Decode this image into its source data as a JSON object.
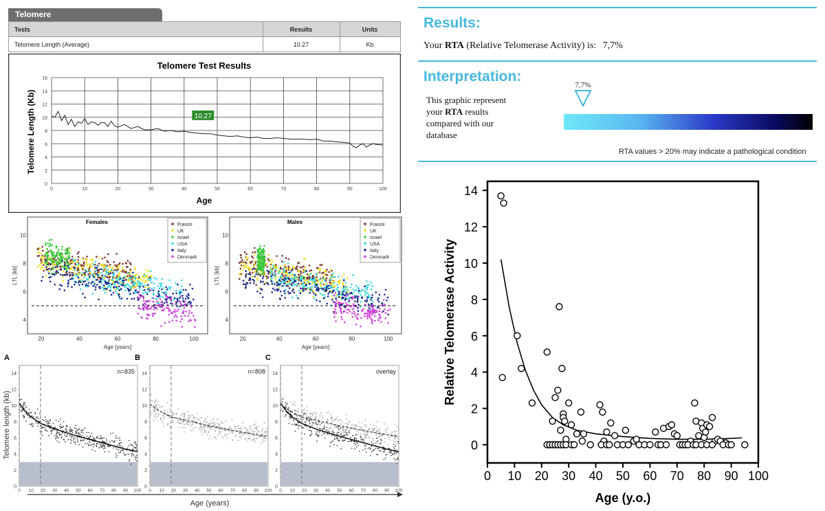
{
  "report": {
    "tab": "Telomere",
    "headers": [
      "Tests",
      "Results",
      "Units"
    ],
    "row": [
      "Telomere Length (Average)",
      "10.27",
      "Kb"
    ]
  },
  "rta": {
    "results_heading": "Results:",
    "result_prefix": "Your",
    "result_bold": "RTA",
    "result_rest": "(Relative Telomerase Activity) is:",
    "result_value": "7,7%",
    "interpretation_heading": "Interpretation:",
    "interp_line1": "This graphic represent",
    "interp_line2_pre": "your",
    "interp_line2_bold": "RTA",
    "interp_line2_post": "results",
    "interp_line3": "compared with our",
    "interp_line4": "database",
    "marker_label": "7,7%",
    "marker_fraction": 0.077,
    "note": "RTA values > 20% may indicate a pathological condition",
    "accent": "#45b8dc"
  },
  "chart_data": [
    {
      "type": "line",
      "title": "Telomere Test Results",
      "xlabel": "Age",
      "ylabel": "Telomere Length (Kb)",
      "xlim": [
        0,
        100
      ],
      "ylim": [
        0,
        16
      ],
      "xticks": [
        "0",
        "10",
        "20",
        "30",
        "40",
        "50",
        "60",
        "70",
        "80",
        "90",
        "100"
      ],
      "yticks": [
        "0",
        "2",
        "4",
        "6",
        "8",
        "10",
        "12",
        "14",
        "16"
      ],
      "annotation": "10.27",
      "annotation_color": "#2e8b2e",
      "x": [
        0,
        1,
        2,
        3,
        4,
        5,
        6,
        7,
        8,
        9,
        10,
        11,
        12,
        13,
        14,
        15,
        16,
        17,
        18,
        19,
        20,
        22,
        24,
        26,
        28,
        30,
        32,
        34,
        36,
        38,
        40,
        42,
        44,
        46,
        48,
        50,
        52,
        54,
        56,
        58,
        60,
        62,
        64,
        66,
        68,
        70,
        72,
        74,
        76,
        78,
        80,
        82,
        84,
        86,
        88,
        90,
        91,
        92,
        93,
        94,
        95,
        96,
        97,
        98,
        100
      ],
      "y": [
        10.2,
        10.0,
        10.9,
        9.5,
        10.3,
        8.9,
        9.7,
        8.6,
        9.3,
        9.1,
        9.8,
        8.9,
        9.3,
        9.2,
        8.8,
        9.2,
        9.2,
        8.6,
        9.4,
        8.7,
        8.5,
        8.9,
        8.3,
        8.6,
        8.1,
        8.1,
        8.3,
        7.9,
        8.0,
        7.8,
        7.9,
        7.7,
        7.6,
        7.5,
        7.5,
        7.3,
        7.2,
        7.1,
        7.2,
        7.0,
        6.9,
        7.0,
        6.8,
        6.8,
        6.9,
        6.8,
        6.7,
        6.7,
        6.7,
        6.6,
        6.7,
        6.4,
        6.4,
        6.3,
        6.2,
        6.1,
        5.6,
        5.4,
        5.8,
        6.0,
        5.5,
        5.8,
        6.0,
        5.9,
        5.8
      ]
    },
    {
      "type": "scatter",
      "title": "Females",
      "xlabel": "Age [years]",
      "ylabel": "LTL [kb]",
      "xticks": [
        "20",
        "40",
        "60",
        "80",
        "100"
      ],
      "yticks": [
        "4",
        "6",
        "8",
        "10"
      ],
      "xlim": [
        15,
        105
      ],
      "ylim": [
        3.3,
        11
      ],
      "reference_line": 5,
      "series": [
        {
          "name": "France",
          "color": "#7a2e2e",
          "x_range": [
            18,
            70
          ],
          "y_center": 7.6
        },
        {
          "name": "UK",
          "color": "#f0e020",
          "x_range": [
            18,
            78
          ],
          "y_center": 7.4
        },
        {
          "name": "Israel",
          "color": "#3cc83c",
          "x_range": [
            22,
            35
          ],
          "y_center": 7.9
        },
        {
          "name": "USA",
          "color": "#38d8e0",
          "x_range": [
            35,
            95
          ],
          "y_center": 6.9
        },
        {
          "name": "Italy",
          "color": "#1a2a88",
          "x_range": [
            20,
            100
          ],
          "y_center": 6.6
        },
        {
          "name": "Denmark",
          "color": "#d040d8",
          "x_range": [
            70,
            101
          ],
          "y_center": 5.6
        }
      ]
    },
    {
      "type": "scatter",
      "title": "Males",
      "xlabel": "Age [years]",
      "ylabel": "LTL [kb]",
      "xticks": [
        "20",
        "40",
        "60",
        "80",
        "100"
      ],
      "yticks": [
        "4",
        "6",
        "8",
        "10"
      ],
      "xlim": [
        15,
        105
      ],
      "ylim": [
        3.3,
        11
      ],
      "reference_line": 5,
      "series": [
        {
          "name": "France",
          "color": "#7a2e2e",
          "x_range": [
            18,
            70
          ],
          "y_center": 7.2
        },
        {
          "name": "UK",
          "color": "#f0e020",
          "x_range": [
            18,
            78
          ],
          "y_center": 7.0
        },
        {
          "name": "Israel",
          "color": "#3cc83c",
          "x_range": [
            28,
            32
          ],
          "y_center": 7.6
        },
        {
          "name": "USA",
          "color": "#38d8e0",
          "x_range": [
            35,
            92
          ],
          "y_center": 6.8
        },
        {
          "name": "Italy",
          "color": "#1a2a88",
          "x_range": [
            20,
            100
          ],
          "y_center": 6.3
        },
        {
          "name": "Denmark",
          "color": "#d040d8",
          "x_range": [
            70,
            101
          ],
          "y_center": 5.4
        }
      ]
    },
    {
      "type": "scatter",
      "panels": [
        {
          "letter": "A",
          "label": "n=835",
          "color": "#555555"
        },
        {
          "letter": "B",
          "label": "n=808",
          "color": "#aaaaaa"
        },
        {
          "letter": "C",
          "label": "overlay",
          "color": "#777777"
        }
      ],
      "xlabel": "Age (years)",
      "ylabel": "Telomere length (kb)",
      "xticks": [
        "0",
        "10",
        "20",
        "30",
        "40",
        "50",
        "60",
        "70",
        "80",
        "90",
        "100"
      ],
      "yticks": [
        "0",
        "2",
        "4",
        "6",
        "8",
        "10",
        "12",
        "14"
      ],
      "xlim": [
        0,
        100
      ],
      "ylim": [
        0,
        15
      ],
      "dashed_x": [
        0,
        18
      ],
      "shaded_band": [
        0,
        3
      ],
      "trend_a": [
        [
          0,
          10.3
        ],
        [
          5,
          9.3
        ],
        [
          10,
          8.6
        ],
        [
          18,
          7.8
        ],
        [
          30,
          7.1
        ],
        [
          50,
          6.2
        ],
        [
          70,
          5.4
        ],
        [
          90,
          4.6
        ],
        [
          100,
          4.3
        ]
      ],
      "trend_b": [
        [
          0,
          10.2
        ],
        [
          5,
          9.6
        ],
        [
          10,
          9.2
        ],
        [
          18,
          8.6
        ],
        [
          30,
          8.2
        ],
        [
          50,
          7.5
        ],
        [
          70,
          6.9
        ],
        [
          90,
          6.4
        ],
        [
          100,
          6.2
        ]
      ]
    },
    {
      "type": "scatter",
      "xlabel": "Age (y.o.)",
      "ylabel": "Relative Telomerase Activity",
      "xticks": [
        "0",
        "10",
        "20",
        "30",
        "40",
        "50",
        "60",
        "70",
        "80",
        "90",
        "100"
      ],
      "yticks": [
        "0",
        "2",
        "4",
        "6",
        "8",
        "10",
        "12",
        "14"
      ],
      "xlim": [
        0,
        100
      ],
      "ylim": [
        -1,
        14.5
      ],
      "points": [
        [
          5,
          13.7
        ],
        [
          6,
          13.3
        ],
        [
          5.5,
          3.7
        ],
        [
          11,
          6.0
        ],
        [
          12.5,
          4.2
        ],
        [
          16.5,
          2.3
        ],
        [
          22,
          5.1
        ],
        [
          24,
          1.3
        ],
        [
          25,
          2.6
        ],
        [
          26,
          3.0
        ],
        [
          26.5,
          7.6
        ],
        [
          27.5,
          4.2
        ],
        [
          28,
          1.7
        ],
        [
          28,
          1.5
        ],
        [
          28.5,
          1.3
        ],
        [
          27,
          0.8
        ],
        [
          29,
          0.3
        ],
        [
          30,
          2.3
        ],
        [
          31,
          1.1
        ],
        [
          33,
          0.6
        ],
        [
          34.5,
          1.8
        ],
        [
          35.5,
          0.6
        ],
        [
          35,
          0.2
        ],
        [
          41.5,
          2.2
        ],
        [
          42.5,
          1.8
        ],
        [
          43,
          0.2
        ],
        [
          44,
          0.7
        ],
        [
          45.5,
          1.2
        ],
        [
          47,
          0.5
        ],
        [
          51,
          0.8
        ],
        [
          54,
          0.2
        ],
        [
          55,
          0.3
        ],
        [
          62,
          0.7
        ],
        [
          65,
          0.9
        ],
        [
          67,
          1.0
        ],
        [
          68,
          1.1
        ],
        [
          69,
          0.6
        ],
        [
          70,
          0.5
        ],
        [
          75,
          0.2
        ],
        [
          76.5,
          2.3
        ],
        [
          77,
          1.3
        ],
        [
          78,
          0.5
        ],
        [
          79,
          1.2
        ],
        [
          79.5,
          0.9
        ],
        [
          80,
          0.4
        ],
        [
          80.5,
          0.7
        ],
        [
          81,
          1.1
        ],
        [
          82,
          1.0
        ],
        [
          83,
          1.5
        ],
        [
          84,
          0.2
        ],
        [
          85,
          0.3
        ],
        [
          86,
          0.2
        ],
        [
          88,
          0.1
        ],
        [
          22,
          0
        ],
        [
          23,
          0
        ],
        [
          24,
          0
        ],
        [
          25,
          0
        ],
        [
          26,
          0
        ],
        [
          27,
          0
        ],
        [
          28,
          0
        ],
        [
          29,
          0
        ],
        [
          31,
          0
        ],
        [
          32,
          0
        ],
        [
          38,
          0
        ],
        [
          42,
          0
        ],
        [
          44,
          0
        ],
        [
          45,
          0
        ],
        [
          48,
          0
        ],
        [
          50,
          0
        ],
        [
          52,
          0
        ],
        [
          56,
          0
        ],
        [
          58,
          0
        ],
        [
          60,
          0
        ],
        [
          63,
          0
        ],
        [
          64,
          0
        ],
        [
          66,
          0
        ],
        [
          71,
          0
        ],
        [
          72,
          0
        ],
        [
          73,
          0
        ],
        [
          74,
          0
        ],
        [
          76,
          0
        ],
        [
          77,
          0
        ],
        [
          79,
          0
        ],
        [
          81,
          0
        ],
        [
          83,
          0
        ],
        [
          87,
          0
        ],
        [
          89,
          0
        ],
        [
          90,
          0
        ],
        [
          95,
          0
        ]
      ],
      "fit": [
        [
          5,
          10.2
        ],
        [
          8,
          7.6
        ],
        [
          11,
          5.6
        ],
        [
          14,
          4.1
        ],
        [
          17,
          3.0
        ],
        [
          20,
          2.2
        ],
        [
          24,
          1.5
        ],
        [
          28,
          1.1
        ],
        [
          33,
          0.8
        ],
        [
          40,
          0.6
        ],
        [
          50,
          0.45
        ],
        [
          60,
          0.35
        ],
        [
          70,
          0.3
        ],
        [
          80,
          0.3
        ],
        [
          90,
          0.35
        ],
        [
          94,
          0.38
        ]
      ]
    }
  ]
}
